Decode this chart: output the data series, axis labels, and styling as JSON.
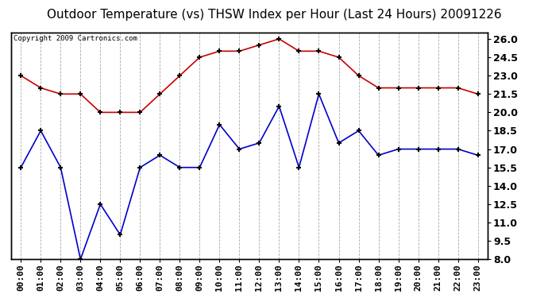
{
  "title": "Outdoor Temperature (vs) THSW Index per Hour (Last 24 Hours) 20091226",
  "copyright": "Copyright 2009 Cartronics.com",
  "hours": [
    "00:00",
    "01:00",
    "02:00",
    "03:00",
    "04:00",
    "05:00",
    "06:00",
    "07:00",
    "08:00",
    "09:00",
    "10:00",
    "11:00",
    "12:00",
    "13:00",
    "14:00",
    "15:00",
    "16:00",
    "17:00",
    "18:00",
    "19:00",
    "20:00",
    "21:00",
    "22:00",
    "23:00"
  ],
  "red_data": [
    23.0,
    22.0,
    21.5,
    21.5,
    20.0,
    20.0,
    20.0,
    21.5,
    23.0,
    24.5,
    25.0,
    25.0,
    25.5,
    26.0,
    25.0,
    25.0,
    24.5,
    23.0,
    22.0,
    22.0,
    22.0,
    22.0,
    22.0,
    21.5
  ],
  "blue_data": [
    15.5,
    18.5,
    15.5,
    8.0,
    12.5,
    10.0,
    15.5,
    16.5,
    15.5,
    15.5,
    19.0,
    17.0,
    17.5,
    20.5,
    15.5,
    21.5,
    17.5,
    18.5,
    16.5,
    17.0,
    17.0,
    17.0,
    17.0,
    16.5
  ],
  "red_color": "#cc0000",
  "blue_color": "#0000cc",
  "bg_color": "#ffffff",
  "grid_color": "#aaaaaa",
  "ylim": [
    8.0,
    26.5
  ],
  "yticks_right": [
    8.0,
    9.5,
    11.0,
    12.5,
    14.0,
    15.5,
    17.0,
    18.5,
    20.0,
    21.5,
    23.0,
    24.5,
    26.0
  ],
  "title_fontsize": 11,
  "copyright_fontsize": 6.5,
  "tick_fontsize": 8,
  "ytick_fontsize": 9
}
